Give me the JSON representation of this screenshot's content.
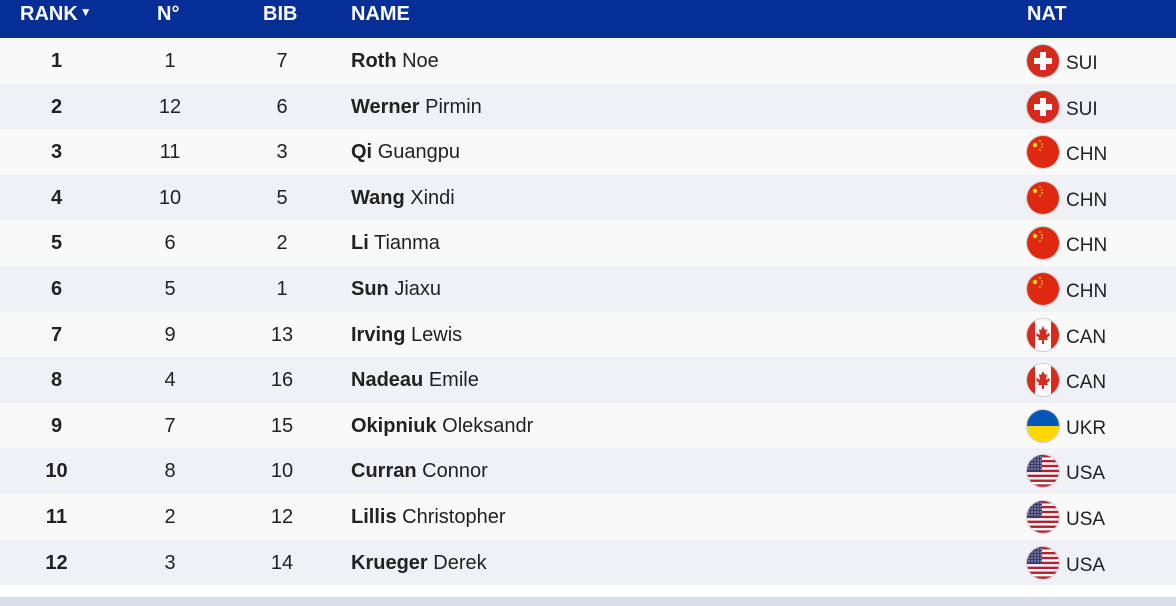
{
  "header": {
    "rank": "RANK",
    "sort_indicator": "▼",
    "no": "N°",
    "bib": "BIB",
    "name": "NAME",
    "nat": "NAT"
  },
  "rows": [
    {
      "rank": "1",
      "no": "1",
      "bib": "7",
      "last": "Roth",
      "first": "Noe",
      "nat": "SUI"
    },
    {
      "rank": "2",
      "no": "12",
      "bib": "6",
      "last": "Werner",
      "first": "Pirmin",
      "nat": "SUI"
    },
    {
      "rank": "3",
      "no": "11",
      "bib": "3",
      "last": "Qi",
      "first": "Guangpu",
      "nat": "CHN"
    },
    {
      "rank": "4",
      "no": "10",
      "bib": "5",
      "last": "Wang",
      "first": "Xindi",
      "nat": "CHN"
    },
    {
      "rank": "5",
      "no": "6",
      "bib": "2",
      "last": "Li",
      "first": "Tianma",
      "nat": "CHN"
    },
    {
      "rank": "6",
      "no": "5",
      "bib": "1",
      "last": "Sun",
      "first": "Jiaxu",
      "nat": "CHN"
    },
    {
      "rank": "7",
      "no": "9",
      "bib": "13",
      "last": "Irving",
      "first": "Lewis",
      "nat": "CAN"
    },
    {
      "rank": "8",
      "no": "4",
      "bib": "16",
      "last": "Nadeau",
      "first": "Emile",
      "nat": "CAN"
    },
    {
      "rank": "9",
      "no": "7",
      "bib": "15",
      "last": "Okipniuk",
      "first": "Oleksandr",
      "nat": "UKR"
    },
    {
      "rank": "10",
      "no": "8",
      "bib": "10",
      "last": "Curran",
      "first": "Connor",
      "nat": "USA"
    },
    {
      "rank": "11",
      "no": "2",
      "bib": "12",
      "last": "Lillis",
      "first": "Christopher",
      "nat": "USA"
    },
    {
      "rank": "12",
      "no": "3",
      "bib": "14",
      "last": "Krueger",
      "first": "Derek",
      "nat": "USA"
    }
  ],
  "colors": {
    "header_bg": "#052f96",
    "row_odd": "#f9f9f9",
    "row_even": "#f0f1f6"
  }
}
